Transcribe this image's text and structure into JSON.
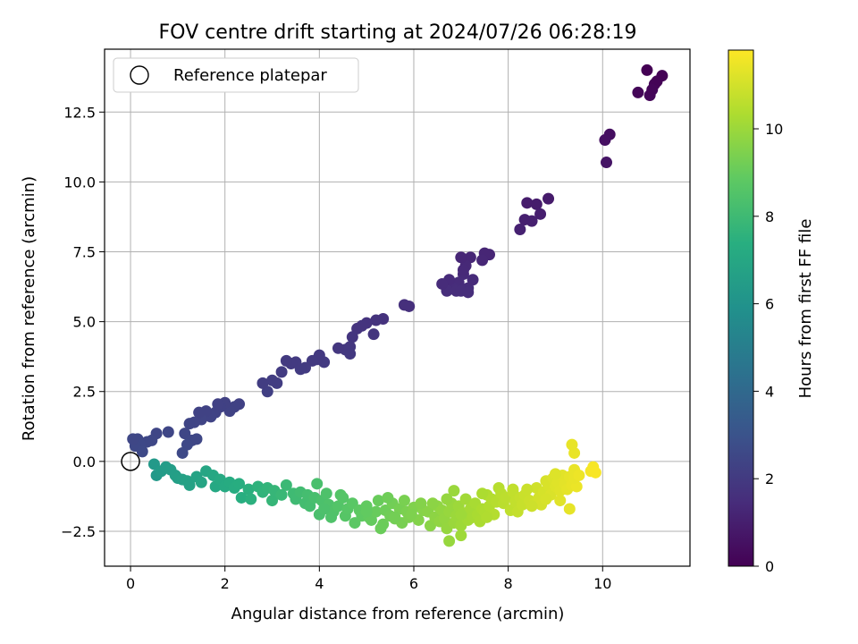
{
  "chart_data": {
    "type": "scatter",
    "title": "FOV centre drift starting at 2024/07/26 06:28:19",
    "xlabel": "Angular distance from reference (arcmin)",
    "ylabel": "Rotation from reference (arcmin)",
    "xlim": [
      -0.55,
      11.85
    ],
    "ylim": [
      -3.75,
      14.75
    ],
    "xticks": [
      0,
      2,
      4,
      6,
      8,
      10
    ],
    "xtick_labels": [
      "0",
      "2",
      "4",
      "6",
      "8",
      "10"
    ],
    "yticks": [
      -2.5,
      0.0,
      2.5,
      5.0,
      7.5,
      10.0,
      12.5
    ],
    "ytick_labels": [
      "−2.5",
      "0.0",
      "2.5",
      "5.0",
      "7.5",
      "10.0",
      "12.5"
    ],
    "grid": true,
    "colormap": "viridis",
    "colorbar": {
      "label": "Hours from first FF file",
      "range": [
        0,
        11.8
      ],
      "ticks": [
        0,
        2,
        4,
        6,
        8,
        10
      ],
      "tick_labels": [
        "0",
        "2",
        "4",
        "6",
        "8",
        "10"
      ]
    },
    "legend": {
      "position": "top-left",
      "entries": [
        "Reference platepar"
      ]
    },
    "reference_point": {
      "x": 0,
      "y": 0
    },
    "upper_branch_points": [
      [
        10.94,
        14.0
      ],
      [
        11.1,
        13.5
      ],
      [
        11.26,
        13.8
      ],
      [
        11.0,
        13.1
      ],
      [
        10.75,
        13.2
      ],
      [
        11.15,
        13.6
      ],
      [
        11.05,
        13.3
      ],
      [
        10.15,
        11.7
      ],
      [
        10.05,
        11.5
      ],
      [
        10.08,
        10.7
      ],
      [
        8.85,
        9.4
      ],
      [
        8.6,
        9.2
      ],
      [
        8.4,
        9.25
      ],
      [
        8.68,
        8.85
      ],
      [
        8.5,
        8.6
      ],
      [
        8.35,
        8.65
      ],
      [
        8.25,
        8.3
      ],
      [
        7.6,
        7.4
      ],
      [
        7.5,
        7.45
      ],
      [
        7.45,
        7.2
      ],
      [
        7.2,
        7.3
      ],
      [
        7.1,
        7.0
      ],
      [
        7.0,
        7.3
      ],
      [
        7.05,
        6.7
      ],
      [
        6.95,
        6.4
      ],
      [
        7.15,
        6.2
      ],
      [
        7.25,
        6.5
      ],
      [
        6.85,
        6.2
      ],
      [
        6.75,
        6.5
      ],
      [
        6.7,
        6.1
      ],
      [
        6.6,
        6.35
      ],
      [
        6.9,
        6.1
      ],
      [
        7.0,
        6.1
      ],
      [
        7.15,
        6.05
      ],
      [
        7.05,
        6.85
      ],
      [
        5.8,
        5.6
      ],
      [
        5.9,
        5.55
      ],
      [
        5.35,
        5.1
      ],
      [
        5.2,
        5.05
      ],
      [
        5.15,
        4.55
      ],
      [
        5.0,
        4.95
      ],
      [
        4.9,
        4.85
      ],
      [
        4.8,
        4.75
      ],
      [
        4.7,
        4.45
      ],
      [
        4.65,
        4.1
      ],
      [
        4.55,
        4.0
      ],
      [
        4.65,
        3.85
      ],
      [
        4.4,
        4.05
      ],
      [
        4.1,
        3.55
      ],
      [
        4.0,
        3.8
      ],
      [
        3.95,
        3.65
      ],
      [
        3.85,
        3.6
      ],
      [
        3.7,
        3.35
      ],
      [
        3.6,
        3.3
      ],
      [
        3.5,
        3.55
      ],
      [
        3.4,
        3.5
      ],
      [
        3.3,
        3.6
      ],
      [
        3.2,
        3.2
      ],
      [
        3.1,
        2.8
      ],
      [
        3.0,
        2.9
      ],
      [
        2.9,
        2.5
      ],
      [
        2.8,
        2.8
      ],
      [
        2.3,
        2.05
      ],
      [
        2.2,
        1.95
      ],
      [
        2.1,
        1.8
      ],
      [
        2.0,
        2.1
      ],
      [
        1.9,
        1.95
      ],
      [
        1.8,
        1.75
      ],
      [
        1.85,
        2.05
      ],
      [
        1.7,
        1.6
      ],
      [
        1.6,
        1.8
      ],
      [
        1.5,
        1.5
      ],
      [
        1.45,
        1.75
      ],
      [
        1.35,
        1.4
      ],
      [
        1.25,
        1.35
      ],
      [
        1.15,
        1.0
      ],
      [
        1.3,
        0.75
      ],
      [
        1.4,
        0.8
      ],
      [
        1.2,
        0.6
      ],
      [
        1.1,
        0.3
      ],
      [
        0.8,
        1.05
      ],
      [
        0.55,
        1.0
      ],
      [
        0.45,
        0.75
      ],
      [
        0.35,
        0.7
      ],
      [
        0.15,
        0.8
      ],
      [
        0.2,
        0.6
      ],
      [
        0.1,
        0.55
      ],
      [
        0.25,
        0.35
      ],
      [
        0.05,
        0.8
      ]
    ],
    "lower_branch_points": [
      [
        0.5,
        -0.1
      ],
      [
        0.55,
        -0.5
      ],
      [
        0.65,
        -0.35
      ],
      [
        0.75,
        -0.2
      ],
      [
        0.85,
        -0.3
      ],
      [
        0.95,
        -0.5
      ],
      [
        1.0,
        -0.6
      ],
      [
        1.1,
        -0.65
      ],
      [
        1.2,
        -0.7
      ],
      [
        1.25,
        -0.85
      ],
      [
        1.4,
        -0.55
      ],
      [
        1.5,
        -0.75
      ],
      [
        1.6,
        -0.35
      ],
      [
        1.75,
        -0.5
      ],
      [
        1.8,
        -0.9
      ],
      [
        1.9,
        -0.65
      ],
      [
        2.0,
        -0.9
      ],
      [
        2.1,
        -0.75
      ],
      [
        2.2,
        -0.95
      ],
      [
        2.3,
        -0.8
      ],
      [
        2.35,
        -1.3
      ],
      [
        2.5,
        -1.0
      ],
      [
        2.55,
        -1.35
      ],
      [
        2.7,
        -0.9
      ],
      [
        2.8,
        -1.1
      ],
      [
        2.9,
        -0.95
      ],
      [
        3.0,
        -1.4
      ],
      [
        3.05,
        -1.05
      ],
      [
        3.2,
        -1.2
      ],
      [
        3.3,
        -0.85
      ],
      [
        3.45,
        -1.15
      ],
      [
        3.5,
        -1.35
      ],
      [
        3.6,
        -1.1
      ],
      [
        3.7,
        -1.5
      ],
      [
        3.75,
        -1.2
      ],
      [
        3.8,
        -1.6
      ],
      [
        3.9,
        -1.3
      ],
      [
        3.95,
        -0.8
      ],
      [
        4.0,
        -1.9
      ],
      [
        4.05,
        -1.4
      ],
      [
        4.15,
        -1.15
      ],
      [
        4.2,
        -1.55
      ],
      [
        4.3,
        -1.8
      ],
      [
        4.4,
        -1.6
      ],
      [
        4.45,
        -1.2
      ],
      [
        4.55,
        -1.95
      ],
      [
        4.6,
        -1.7
      ],
      [
        4.7,
        -1.5
      ],
      [
        4.75,
        -2.2
      ],
      [
        4.85,
        -1.75
      ],
      [
        4.9,
        -1.95
      ],
      [
        5.0,
        -1.6
      ],
      [
        5.05,
        -2.0
      ],
      [
        5.1,
        -2.1
      ],
      [
        5.2,
        -1.8
      ],
      [
        5.25,
        -1.4
      ],
      [
        5.35,
        -2.25
      ],
      [
        5.4,
        -1.75
      ],
      [
        5.5,
        -1.95
      ],
      [
        5.55,
        -1.5
      ],
      [
        5.6,
        -2.05
      ],
      [
        5.7,
        -1.7
      ],
      [
        5.75,
        -2.2
      ],
      [
        5.8,
        -1.4
      ],
      [
        5.85,
        -1.8
      ],
      [
        5.9,
        -2.0
      ],
      [
        6.0,
        -1.65
      ],
      [
        6.1,
        -2.1
      ],
      [
        6.2,
        -1.75
      ],
      [
        6.3,
        -1.8
      ],
      [
        6.35,
        -2.3
      ],
      [
        6.45,
        -2.0
      ],
      [
        6.5,
        -1.6
      ],
      [
        6.55,
        -2.15
      ],
      [
        6.6,
        -1.75
      ],
      [
        6.65,
        -2.05
      ],
      [
        6.7,
        -2.4
      ],
      [
        6.75,
        -1.8
      ],
      [
        6.75,
        -2.85
      ],
      [
        6.8,
        -1.5
      ],
      [
        6.85,
        -2.2
      ],
      [
        6.9,
        -1.95
      ],
      [
        6.95,
        -1.6
      ],
      [
        7.0,
        -2.3
      ],
      [
        7.0,
        -2.65
      ],
      [
        7.05,
        -1.85
      ],
      [
        7.1,
        -1.35
      ],
      [
        7.15,
        -2.1
      ],
      [
        7.2,
        -1.7
      ],
      [
        7.25,
        -2.0
      ],
      [
        7.3,
        -1.5
      ],
      [
        7.35,
        -1.9
      ],
      [
        7.4,
        -2.15
      ],
      [
        7.45,
        -1.7
      ],
      [
        7.5,
        -1.8
      ],
      [
        7.55,
        -1.2
      ],
      [
        7.6,
        -1.6
      ],
      [
        7.65,
        -1.35
      ],
      [
        7.7,
        -1.9
      ],
      [
        7.75,
        -1.45
      ],
      [
        7.8,
        -0.95
      ],
      [
        7.85,
        -1.15
      ],
      [
        7.9,
        -1.5
      ],
      [
        7.95,
        -1.3
      ],
      [
        8.05,
        -1.75
      ],
      [
        8.1,
        -1.1
      ],
      [
        8.15,
        -1.45
      ],
      [
        8.2,
        -1.8
      ],
      [
        8.25,
        -1.3
      ],
      [
        8.3,
        -1.55
      ],
      [
        8.35,
        -1.2
      ],
      [
        8.45,
        -1.4
      ],
      [
        8.55,
        -1.5
      ],
      [
        8.6,
        -0.95
      ],
      [
        8.65,
        -1.3
      ],
      [
        8.7,
        -1.55
      ],
      [
        8.75,
        -1.1
      ],
      [
        8.8,
        -0.7
      ],
      [
        8.85,
        -0.85
      ],
      [
        8.9,
        -1.2
      ],
      [
        8.95,
        -0.6
      ],
      [
        9.0,
        -0.9
      ],
      [
        9.05,
        -0.75
      ],
      [
        9.1,
        -1.05
      ],
      [
        9.15,
        -0.5
      ],
      [
        9.2,
        -0.8
      ],
      [
        9.25,
        -1.0
      ],
      [
        9.3,
        -0.55
      ],
      [
        9.35,
        -0.85
      ],
      [
        9.4,
        0.3
      ],
      [
        9.35,
        0.6
      ],
      [
        9.4,
        -0.3
      ],
      [
        9.3,
        -1.7
      ],
      [
        9.1,
        -1.4
      ],
      [
        9.45,
        -0.9
      ],
      [
        9.4,
        -0.6
      ],
      [
        9.75,
        -0.35
      ],
      [
        9.8,
        -0.2
      ],
      [
        9.85,
        -0.4
      ],
      [
        8.1,
        -1.0
      ],
      [
        6.4,
        -1.5
      ],
      [
        7.0,
        -1.9
      ],
      [
        6.85,
        -1.05
      ],
      [
        5.95,
        -1.9
      ],
      [
        4.25,
        -2.0
      ],
      [
        5.3,
        -2.4
      ],
      [
        5.6,
        -2.0
      ],
      [
        5.0,
        -1.8
      ],
      [
        5.45,
        -1.3
      ],
      [
        4.5,
        -1.3
      ],
      [
        4.1,
        -1.7
      ],
      [
        6.15,
        -1.5
      ],
      [
        6.7,
        -1.35
      ],
      [
        7.55,
        -2.0
      ],
      [
        8.5,
        -1.6
      ],
      [
        9.5,
        -0.5
      ],
      [
        8.8,
        -1.35
      ],
      [
        9.0,
        -0.45
      ],
      [
        8.4,
        -1.0
      ],
      [
        7.45,
        -1.15
      ]
    ]
  }
}
